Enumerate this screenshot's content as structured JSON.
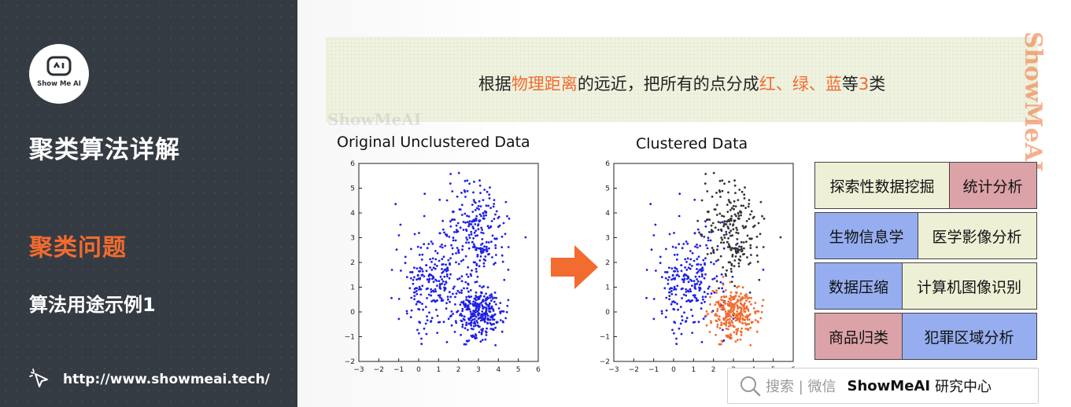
{
  "sidebar": {
    "logo_text": "Show Me AI",
    "title": "聚类算法详解",
    "section": "聚类问题",
    "subsection": "算法用途示例1",
    "url": "http://www.showmeai.tech/"
  },
  "banner": {
    "text_1": "根据",
    "text_hl_1": "物理距离",
    "text_2": "的远近，把所有的点分成",
    "text_hl_2": "红",
    "text_3": "、",
    "text_hl_3": "绿",
    "text_4": "、",
    "text_hl_4": "蓝",
    "text_5": "等",
    "text_hl_5": "3",
    "text_6": "类"
  },
  "watermarks": {
    "horizontal": "ShowMeAI",
    "vertical": "ShowMeAI"
  },
  "charts": {
    "left_title": "Original Unclustered Data",
    "right_title": "Clustered Data"
  },
  "categories": [
    {
      "label": "探索性数据挖掘",
      "color": "#eef0d6"
    },
    {
      "label": "统计分析",
      "color": "#dba2a8"
    },
    {
      "label": "生物信息学",
      "color": "#96aef0"
    },
    {
      "label": "医学影像分析",
      "color": "#eef0d6"
    },
    {
      "label": "数据压缩",
      "color": "#96aef0"
    },
    {
      "label": "计算机图像识别",
      "color": "#eef0d6"
    },
    {
      "label": "商品归类",
      "color": "#dba2a8"
    },
    {
      "label": "犯罪区域分析",
      "color": "#96aef0"
    }
  ],
  "footer": {
    "search_text": "搜索 | 微信",
    "brand": "ShowMeAI",
    "brand_suffix": "研究中心"
  },
  "colors": {
    "accent": "#f26b2f",
    "cluster_blue": "#1f1fe6",
    "cluster_gray": "#333333",
    "cluster_orange": "#f26b2f"
  },
  "chart_data": [
    {
      "type": "scatter",
      "title": "Original Unclustered Data",
      "xlim": [
        -3,
        6
      ],
      "ylim": [
        -2,
        6
      ],
      "xticks": [
        -3,
        -2,
        -1,
        0,
        1,
        2,
        3,
        4,
        5,
        6
      ],
      "yticks": [
        -2,
        -1,
        0,
        1,
        2,
        3,
        4,
        5,
        6
      ],
      "series": [
        {
          "color": "#1f1fe6",
          "distribution": "three gaussian blobs",
          "centers": [
            [
              0.8,
              1.3
            ],
            [
              3.0,
              3.2
            ],
            [
              3.0,
              0.0
            ]
          ],
          "points_per_blob": [
            260,
            230,
            300
          ]
        }
      ]
    },
    {
      "type": "scatter",
      "title": "Clustered Data",
      "xlim": [
        -3,
        6
      ],
      "ylim": [
        -2,
        6
      ],
      "xticks": [
        -3,
        -2,
        -1,
        0,
        1,
        2,
        3,
        4,
        5,
        6
      ],
      "yticks": [
        -2,
        -1,
        0,
        1,
        2,
        3,
        4,
        5,
        6
      ],
      "series": [
        {
          "color": "#1f1fe6",
          "center": [
            0.8,
            1.3
          ],
          "points": 260
        },
        {
          "color": "#333333",
          "center": [
            3.0,
            3.2
          ],
          "points": 230
        },
        {
          "color": "#f26b2f",
          "center": [
            3.0,
            0.0
          ],
          "points": 300
        }
      ]
    }
  ]
}
